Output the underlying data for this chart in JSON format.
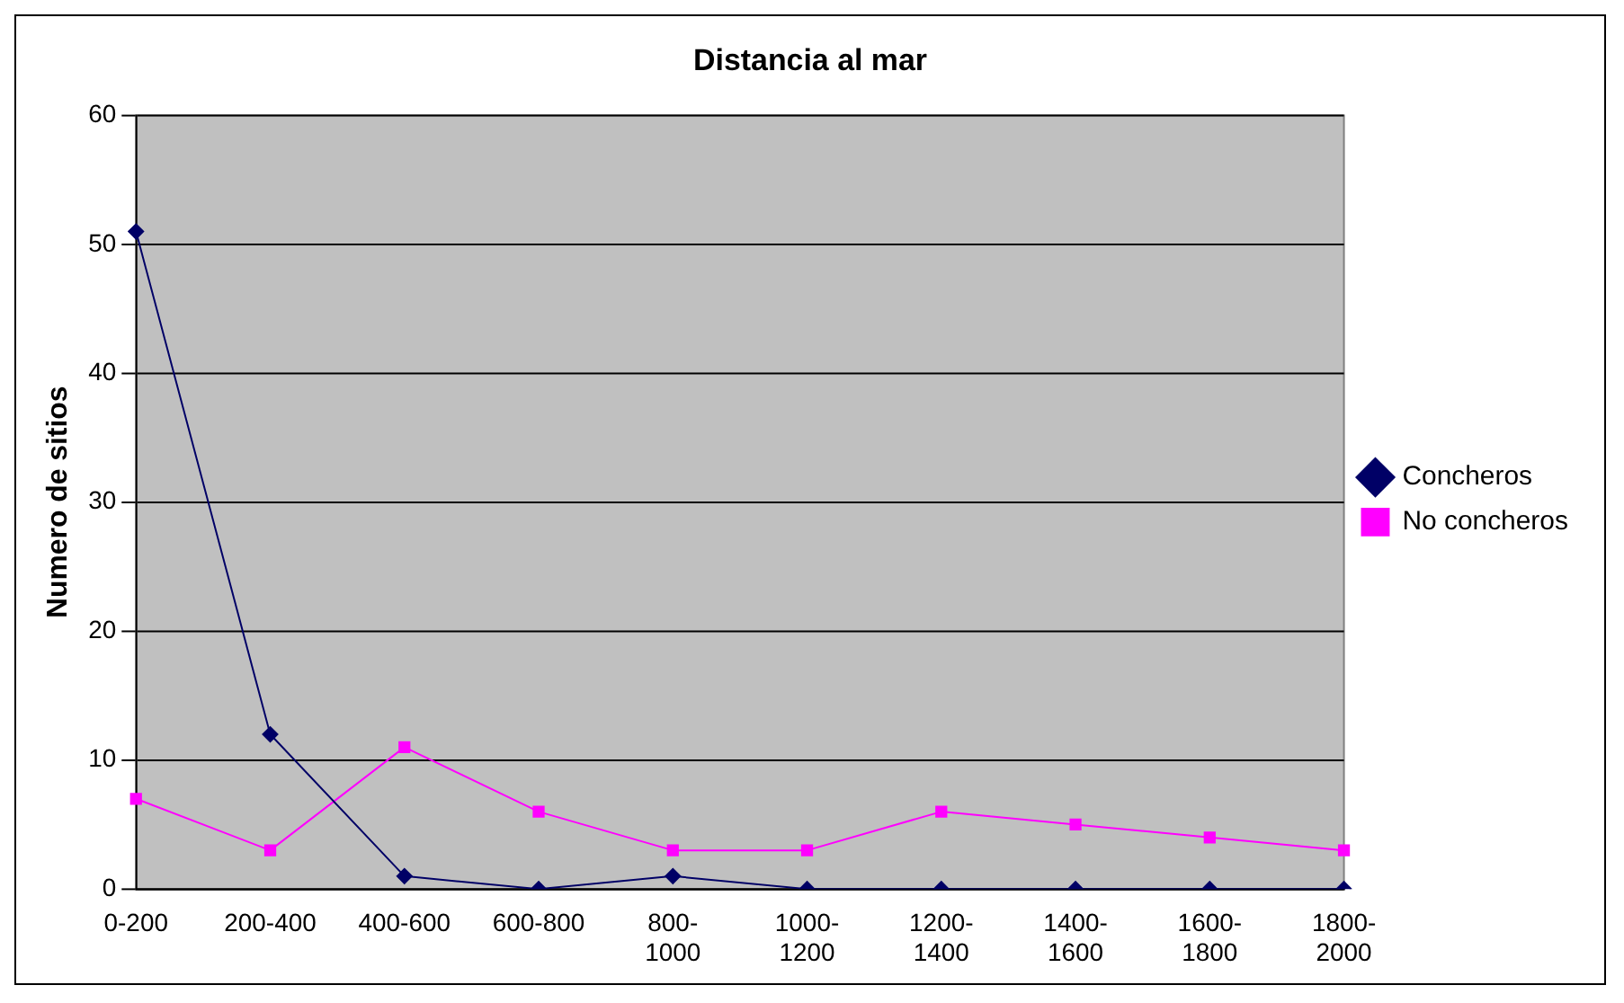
{
  "chart_data": {
    "type": "line",
    "title": "Distancia al mar",
    "ylabel": "Numero de sitios",
    "categories": [
      "0-200",
      "200-400",
      "400-600",
      "600-800",
      "800-1000",
      "1000-1200",
      "1200-1400",
      "1400-1600",
      "1600-1800",
      "1800-2000"
    ],
    "series": [
      {
        "name": "Concheros",
        "color": "#000066",
        "marker": "diamond",
        "values": [
          51,
          12,
          1,
          0,
          1,
          0,
          0,
          0,
          0,
          0
        ]
      },
      {
        "name": "No concheros",
        "color": "#ff00ff",
        "marker": "square",
        "values": [
          7,
          3,
          11,
          6,
          3,
          3,
          6,
          5,
          4,
          3
        ]
      }
    ],
    "ylim": [
      0,
      60
    ],
    "yticks": [
      0,
      10,
      20,
      30,
      40,
      50,
      60
    ],
    "grid": "y",
    "legend": "right"
  }
}
